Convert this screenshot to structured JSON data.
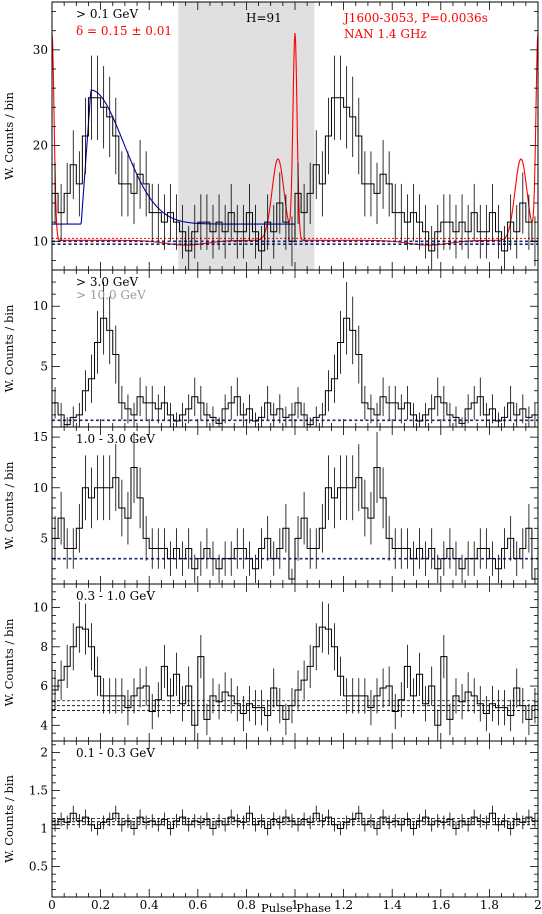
{
  "figure": {
    "xlabel": "Pulse Phase",
    "x_ticks": [
      "0",
      "0.2",
      "0.4",
      "0.6",
      "0.8",
      "1",
      "1.2",
      "1.4",
      "1.6",
      "1.8",
      "2"
    ],
    "colors": {
      "radio": "#ff0000",
      "fit": "#0000aa",
      "offpulse": "#e0e0e0",
      "background": "#1a2a7a"
    }
  },
  "chart_data": [
    {
      "type": "line",
      "ylabel": "W. Counts / bin",
      "ylim": [
        7,
        35
      ],
      "y_ticks": [
        {
          "v": 10,
          "t": "10"
        },
        {
          "v": 20,
          "t": "20"
        },
        {
          "v": 30,
          "t": "30"
        }
      ],
      "energy_label": "> 0.1 GeV",
      "delta_label": "δ = 0.15 ± 0.01",
      "h_label": "H=91",
      "pulsar_label": "J1600-3053, P=0.0036s",
      "radio_label": "NAN 1.4 GHz",
      "offpulse_range": [
        0.52,
        1.08
      ],
      "background_level": [
        10.0,
        9.7
      ],
      "x": [
        0.0,
        0.025,
        0.05,
        0.075,
        0.1,
        0.125,
        0.15,
        0.175,
        0.2,
        0.225,
        0.25,
        0.275,
        0.3,
        0.325,
        0.35,
        0.375,
        0.4,
        0.425,
        0.45,
        0.475,
        0.5,
        0.525,
        0.55,
        0.575,
        0.6,
        0.625,
        0.65,
        0.675,
        0.7,
        0.725,
        0.75,
        0.775,
        0.8,
        0.825,
        0.85,
        0.875,
        0.9,
        0.925,
        0.95,
        0.975
      ],
      "values": [
        15,
        13,
        15,
        18,
        16,
        21,
        25,
        25,
        24,
        23,
        21,
        16,
        16,
        15,
        17,
        16,
        13,
        13,
        12,
        13,
        12,
        11,
        9,
        11,
        12,
        12,
        11,
        12,
        11,
        13,
        11,
        11,
        13,
        11,
        9,
        12,
        11,
        14,
        12,
        10
      ],
      "errors": [
        3.2,
        3.0,
        3.2,
        3.6,
        3.4,
        4.0,
        4.4,
        4.4,
        4.3,
        4.2,
        4.0,
        3.4,
        3.4,
        3.2,
        3.6,
        3.4,
        3.0,
        3.0,
        2.9,
        3.0,
        2.9,
        2.8,
        2.6,
        2.8,
        2.9,
        2.9,
        2.8,
        2.9,
        2.8,
        3.0,
        2.8,
        2.8,
        3.0,
        2.8,
        2.6,
        2.9,
        2.8,
        3.2,
        2.9,
        2.6
      ]
    },
    {
      "type": "line",
      "ylabel": "W. Counts / bin",
      "ylim": [
        0,
        13
      ],
      "y_ticks": [
        {
          "v": 5,
          "t": "5"
        },
        {
          "v": 10,
          "t": "10"
        }
      ],
      "energy_label": "> 3.0 GeV",
      "energy_label_2": "> 10.0 GeV",
      "background_level": [
        0.55
      ],
      "x": [
        0.0,
        0.025,
        0.05,
        0.075,
        0.1,
        0.125,
        0.15,
        0.175,
        0.2,
        0.225,
        0.25,
        0.275,
        0.3,
        0.325,
        0.35,
        0.375,
        0.4,
        0.425,
        0.45,
        0.475,
        0.5,
        0.525,
        0.55,
        0.575,
        0.6,
        0.625,
        0.65,
        0.675,
        0.7,
        0.725,
        0.75,
        0.775,
        0.8,
        0.825,
        0.85,
        0.875,
        0.9,
        0.925,
        0.95,
        0.975
      ],
      "values": [
        2,
        1,
        0.2,
        0.8,
        1,
        3,
        4,
        7,
        9,
        8,
        6,
        2,
        1.5,
        1,
        2.5,
        2,
        2,
        1.5,
        2,
        1,
        0.5,
        1,
        1.5,
        2.5,
        2,
        1,
        0.8,
        0.3,
        1.5,
        2,
        2.5,
        1,
        1.5,
        0.5,
        0.8,
        2,
        1,
        1.5,
        0.8,
        1
      ],
      "errors": [
        1.3,
        1.0,
        0.6,
        0.9,
        1.0,
        1.7,
        2.0,
        2.6,
        3.0,
        2.8,
        2.4,
        1.4,
        1.2,
        1.0,
        1.6,
        1.4,
        1.4,
        1.2,
        1.4,
        1.0,
        0.7,
        1.0,
        1.2,
        1.6,
        1.4,
        1.0,
        0.9,
        0.5,
        1.2,
        1.4,
        1.6,
        1.0,
        1.2,
        0.7,
        0.9,
        1.4,
        1.0,
        1.2,
        0.9,
        1.0
      ]
    },
    {
      "type": "line",
      "ylabel": "W. Counts / bin",
      "ylim": [
        0.5,
        16
      ],
      "y_ticks": [
        {
          "v": 5,
          "t": "5"
        },
        {
          "v": 10,
          "t": "10"
        },
        {
          "v": 15,
          "t": "15"
        }
      ],
      "energy_label": "1.0 - 3.0 GeV",
      "background_level": [
        3.0
      ],
      "x": [
        0.0,
        0.025,
        0.05,
        0.075,
        0.1,
        0.125,
        0.15,
        0.175,
        0.2,
        0.225,
        0.25,
        0.275,
        0.3,
        0.325,
        0.35,
        0.375,
        0.4,
        0.425,
        0.45,
        0.475,
        0.5,
        0.525,
        0.55,
        0.575,
        0.6,
        0.625,
        0.65,
        0.675,
        0.7,
        0.725,
        0.75,
        0.775,
        0.8,
        0.825,
        0.85,
        0.875,
        0.9,
        0.925,
        0.95,
        0.975
      ],
      "values": [
        5,
        7,
        4,
        4,
        6,
        10,
        9,
        10,
        10,
        10,
        11,
        8,
        7,
        12,
        9,
        5,
        4,
        4,
        4,
        3,
        4,
        3,
        4,
        2,
        3,
        4,
        3,
        2,
        3,
        3,
        4,
        4,
        3,
        2,
        4,
        5,
        3,
        4,
        6,
        1
      ],
      "errors": [
        2.2,
        2.6,
        2.0,
        2.0,
        2.4,
        3.2,
        3.0,
        3.2,
        3.2,
        3.2,
        3.3,
        2.8,
        2.6,
        3.5,
        3.0,
        2.2,
        2.0,
        2.0,
        2.0,
        1.7,
        2.0,
        1.7,
        2.0,
        1.4,
        1.7,
        2.0,
        1.7,
        1.4,
        1.7,
        1.7,
        2.0,
        2.0,
        1.7,
        1.4,
        2.0,
        2.2,
        1.7,
        2.0,
        2.4,
        1.0
      ]
    },
    {
      "type": "line",
      "ylabel": "W. Counts / bin",
      "ylim": [
        3.2,
        11.2
      ],
      "y_ticks": [
        {
          "v": 4,
          "t": "4"
        },
        {
          "v": 6,
          "t": "6"
        },
        {
          "v": 8,
          "t": "8"
        },
        {
          "v": 10,
          "t": "10"
        }
      ],
      "energy_label": "0.3 - 1.0 GeV",
      "background_level": [
        5.25,
        5.0,
        4.75
      ],
      "x": [
        0.0,
        0.025,
        0.05,
        0.075,
        0.1,
        0.125,
        0.15,
        0.175,
        0.2,
        0.225,
        0.25,
        0.275,
        0.3,
        0.325,
        0.35,
        0.375,
        0.4,
        0.425,
        0.45,
        0.475,
        0.5,
        0.525,
        0.55,
        0.575,
        0.6,
        0.625,
        0.65,
        0.675,
        0.7,
        0.725,
        0.75,
        0.775,
        0.8,
        0.825,
        0.85,
        0.875,
        0.9,
        0.925,
        0.95,
        0.975
      ],
      "values": [
        5.8,
        6.3,
        7.0,
        8.0,
        9.0,
        8.9,
        8.0,
        6.5,
        5.5,
        5.5,
        5.5,
        5.5,
        4.9,
        5.5,
        5.9,
        6.0,
        4.7,
        5.3,
        7.0,
        5.5,
        6.6,
        5.1,
        6.0,
        4.0,
        7.5,
        4.3,
        5.5,
        5.2,
        5.7,
        5.5,
        5.1,
        4.6,
        5.1,
        4.9,
        4.9,
        4.5,
        5.9,
        5.0,
        4.3,
        5.0
      ],
      "errors": [
        1.0,
        1.0,
        1.1,
        1.2,
        1.3,
        1.3,
        1.2,
        1.0,
        0.9,
        0.9,
        0.9,
        0.9,
        0.9,
        0.9,
        1.0,
        1.0,
        0.9,
        0.9,
        1.1,
        0.9,
        1.1,
        0.9,
        1.0,
        0.8,
        1.1,
        0.8,
        0.9,
        0.9,
        1.0,
        0.9,
        0.9,
        0.9,
        0.9,
        0.9,
        0.9,
        0.8,
        1.0,
        0.9,
        0.8,
        0.9
      ]
    },
    {
      "type": "line",
      "ylabel": "W. Counts / bin",
      "ylim": [
        0.1,
        2.15
      ],
      "y_ticks": [
        {
          "v": 0.5,
          "t": "0.5"
        },
        {
          "v": 1,
          "t": "1"
        },
        {
          "v": 1.5,
          "t": "1.5"
        },
        {
          "v": 2,
          "t": "2"
        }
      ],
      "energy_label": "0.1 - 0.3 GeV",
      "background_level": [
        1.13,
        1.09,
        1.05
      ],
      "x": [
        0.0,
        0.025,
        0.05,
        0.075,
        0.1,
        0.125,
        0.15,
        0.175,
        0.2,
        0.225,
        0.25,
        0.275,
        0.3,
        0.325,
        0.35,
        0.375,
        0.4,
        0.425,
        0.45,
        0.475,
        0.5,
        0.525,
        0.55,
        0.575,
        0.6,
        0.625,
        0.65,
        0.675,
        0.7,
        0.725,
        0.75,
        0.775,
        0.8,
        0.825,
        0.85,
        0.875,
        0.9,
        0.925,
        0.95,
        0.975
      ],
      "values": [
        1.05,
        1.12,
        1.08,
        1.2,
        1.1,
        1.15,
        1.05,
        1.0,
        1.08,
        1.12,
        1.2,
        1.05,
        1.1,
        1.0,
        1.15,
        1.08,
        1.1,
        1.05,
        1.12,
        1.0,
        1.1,
        1.15,
        1.05,
        1.1,
        1.08,
        1.12,
        1.0,
        1.1,
        1.05,
        1.15,
        1.1,
        1.08,
        1.2,
        1.05,
        1.1,
        1.0,
        1.12,
        1.08,
        1.15,
        1.1
      ],
      "errors": [
        0.09,
        0.09,
        0.09,
        0.1,
        0.09,
        0.1,
        0.09,
        0.09,
        0.09,
        0.09,
        0.1,
        0.09,
        0.09,
        0.09,
        0.1,
        0.09,
        0.09,
        0.09,
        0.09,
        0.09,
        0.09,
        0.1,
        0.09,
        0.09,
        0.09,
        0.09,
        0.09,
        0.09,
        0.09,
        0.1,
        0.09,
        0.09,
        0.1,
        0.09,
        0.09,
        0.09,
        0.09,
        0.09,
        0.1,
        0.09
      ]
    }
  ]
}
